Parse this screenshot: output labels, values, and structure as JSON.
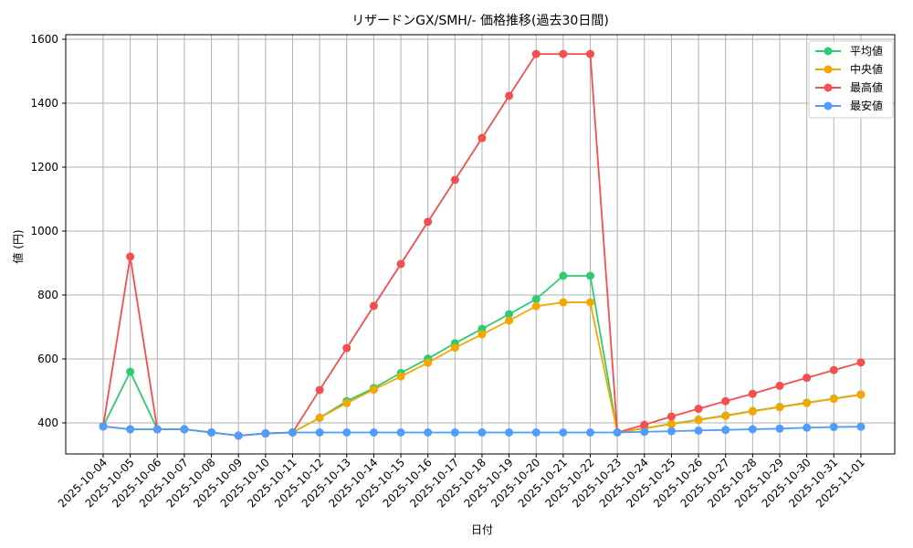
{
  "chart_data": {
    "type": "line",
    "title": "リザードンGX/SMH/- 価格推移(過去30日間)",
    "xlabel": "日付",
    "ylabel": "値 (円)",
    "ylim": [
      300,
      1610
    ],
    "yticks": [
      400,
      600,
      800,
      1000,
      1200,
      1400,
      1600
    ],
    "grid": true,
    "legend_position": "upper right",
    "categories": [
      "2025-10-04",
      "2025-10-05",
      "2025-10-06",
      "2025-10-07",
      "2025-10-08",
      "2025-10-09",
      "2025-10-10",
      "2025-10-11",
      "2025-10-12",
      "2025-10-13",
      "2025-10-14",
      "2025-10-15",
      "2025-10-16",
      "2025-10-17",
      "2025-10-18",
      "2025-10-19",
      "2025-10-20",
      "2025-10-21",
      "2025-10-22",
      "2025-10-23",
      "2025-10-24",
      "2025-10-25",
      "2025-10-26",
      "2025-10-27",
      "2025-10-28",
      "2025-10-29",
      "2025-10-30",
      "2025-10-31",
      "2025-11-01"
    ],
    "series": [
      {
        "name": "平均値",
        "color": "#2ecc71",
        "values": [
          389,
          560,
          380,
          380,
          370,
          360,
          367,
          370,
          416,
          468,
          509,
          556,
          601,
          649,
          694,
          740,
          787,
          860,
          860,
          370,
          383,
          397,
          410,
          423,
          437,
          450,
          463,
          476,
          489
        ]
      },
      {
        "name": "中央値",
        "color": "#f5a700",
        "values": [
          389,
          380,
          380,
          380,
          370,
          360,
          367,
          370,
          416,
          462,
          504,
          545,
          588,
          635,
          677,
          720,
          765,
          777,
          777,
          370,
          383,
          396,
          409,
          422,
          436,
          449,
          462,
          475,
          488
        ]
      },
      {
        "name": "最高値",
        "color": "#f44e4e",
        "values": [
          389,
          920,
          380,
          380,
          370,
          360,
          367,
          370,
          503,
          634,
          766,
          897,
          1029,
          1160,
          1291,
          1423,
          1554,
          1554,
          1554,
          370,
          394,
          420,
          444,
          468,
          491,
          516,
          541,
          565,
          589
        ]
      },
      {
        "name": "最安値",
        "color": "#4f9cff",
        "values": [
          389,
          380,
          380,
          380,
          370,
          360,
          367,
          370,
          370,
          370,
          370,
          370,
          370,
          370,
          370,
          370,
          370,
          370,
          370,
          370,
          372,
          374,
          376,
          378,
          380,
          382,
          385,
          387,
          388
        ]
      }
    ]
  }
}
